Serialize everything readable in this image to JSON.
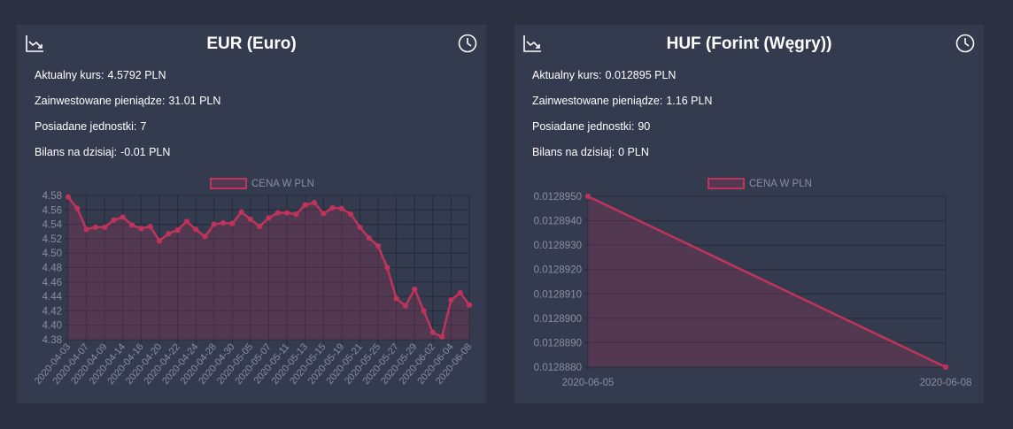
{
  "cards": [
    {
      "title": "EUR (Euro)",
      "rows": [
        {
          "label": "Aktualny kurs:",
          "value": "4.5792 PLN"
        },
        {
          "label": "Zainwestowane pieniądze:",
          "value": "31.01 PLN"
        },
        {
          "label": "Posiadane jednostki:",
          "value": "7"
        },
        {
          "label": "Bilans na dzisiaj:",
          "value": "-0.01 PLN"
        }
      ],
      "icons": {
        "left": "chart-trend-icon",
        "right": "clock-icon"
      }
    },
    {
      "title": "HUF (Forint (Węgry))",
      "rows": [
        {
          "label": "Aktualny kurs:",
          "value": "0.012895 PLN"
        },
        {
          "label": "Zainwestowane pieniądze:",
          "value": "1.16 PLN"
        },
        {
          "label": "Posiadane jednostki:",
          "value": "90"
        },
        {
          "label": "Bilans na dzisiaj:",
          "value": "0 PLN"
        }
      ],
      "icons": {
        "left": "chart-trend-icon",
        "right": "clock-icon"
      }
    }
  ],
  "colors": {
    "line": "#c0335a",
    "fill": "rgba(192,51,90,0.22)",
    "grid": "#252b3b",
    "tick": "#8a8f9c",
    "legend": "#8a8f9c"
  },
  "chart_data": [
    {
      "type": "line",
      "legend": "CENA W PLN",
      "ylim": [
        4.38,
        4.58
      ],
      "yticks": [
        "4.58",
        "4.56",
        "4.54",
        "4.52",
        "4.50",
        "4.48",
        "4.46",
        "4.44",
        "4.42",
        "4.40",
        "4.38"
      ],
      "xticks": [
        "2020-04-03",
        "2020-04-07",
        "2020-04-09",
        "2020-04-14",
        "2020-04-16",
        "2020-04-20",
        "2020-04-22",
        "2020-04-24",
        "2020-04-28",
        "2020-04-30",
        "2020-05-05",
        "2020-05-07",
        "2020-05-11",
        "2020-05-13",
        "2020-05-15",
        "2020-05-19",
        "2020-05-21",
        "2020-05-25",
        "2020-05-27",
        "2020-05-29",
        "2020-06-02",
        "2020-06-04",
        "2020-06-08"
      ],
      "values": [
        4.578,
        4.562,
        4.533,
        4.536,
        4.536,
        4.546,
        4.55,
        4.539,
        4.534,
        4.537,
        4.517,
        4.527,
        4.532,
        4.544,
        4.533,
        4.523,
        4.54,
        4.542,
        4.541,
        4.557,
        4.547,
        4.537,
        4.549,
        4.556,
        4.556,
        4.554,
        4.567,
        4.57,
        4.555,
        4.563,
        4.562,
        4.554,
        4.536,
        4.521,
        4.51,
        4.48,
        4.437,
        4.427,
        4.45,
        4.42,
        4.39,
        4.384,
        4.435,
        4.445,
        4.428
      ]
    },
    {
      "type": "line",
      "legend": "CENA W PLN",
      "ylim": [
        0.012888,
        0.012895
      ],
      "yticks": [
        "0.0128950",
        "0.0128940",
        "0.0128930",
        "0.0128920",
        "0.0128910",
        "0.0128900",
        "0.0128890",
        "0.0128880"
      ],
      "x": [
        "2020-06-05",
        "2020-06-08"
      ],
      "values": [
        0.012895,
        0.012888
      ]
    }
  ]
}
